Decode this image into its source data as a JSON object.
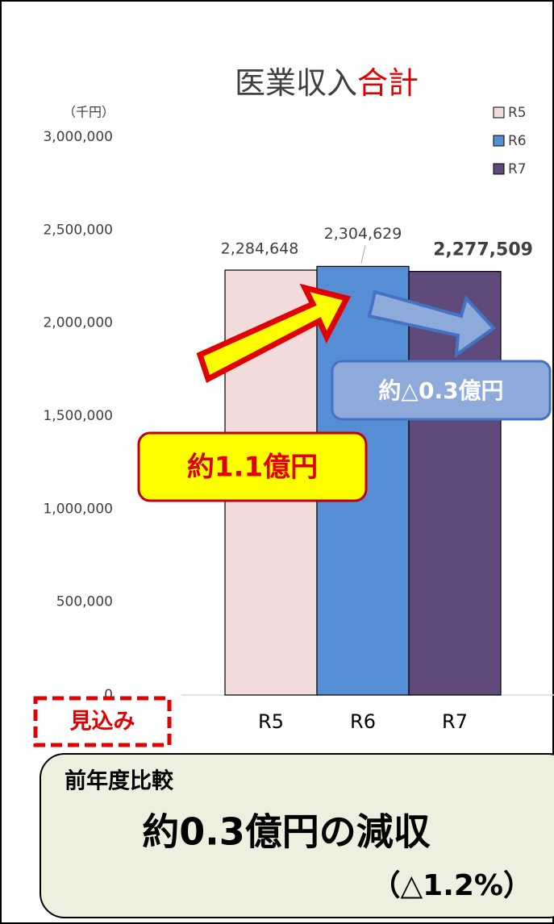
{
  "chart_data": {
    "type": "bar",
    "title": {
      "text": "医業収入",
      "highlight": "合計"
    },
    "y_unit": "（千円）",
    "categories": [
      "R5",
      "R6",
      "R7"
    ],
    "series": [
      {
        "name": "R5",
        "color": "#f2dcdb",
        "values": [
          2284648,
          null,
          null
        ],
        "value_labels": [
          "2,284,648",
          null,
          null
        ]
      },
      {
        "name": "R6",
        "color": "#558ed5",
        "values": [
          null,
          2304629,
          null
        ],
        "value_labels": [
          null,
          "2,304,629",
          null
        ]
      },
      {
        "name": "R7",
        "color": "#604a7b",
        "values": [
          null,
          null,
          2277509
        ],
        "value_labels": [
          null,
          null,
          "2,277,509"
        ]
      }
    ],
    "ylim": [
      0,
      3000000
    ],
    "yticks": [
      {
        "value": 0,
        "label": "0"
      },
      {
        "value": 500000,
        "label": "500,000"
      },
      {
        "value": 1000000,
        "label": "1,000,000"
      },
      {
        "value": 1500000,
        "label": "1,500,000"
      },
      {
        "value": 2000000,
        "label": "2,000,000"
      },
      {
        "value": 2500000,
        "label": "2,500,000"
      },
      {
        "value": 3000000,
        "label": "3,000,000"
      }
    ],
    "legend": "top-right",
    "annotations": {
      "increase": "約1.1億円",
      "decrease": "約△0.3億円",
      "estimate": "見込み",
      "comparison_heading": "前年度比較",
      "comparison": "約0.3億円の減収",
      "comparison_rate": "（△1.2%）"
    }
  }
}
